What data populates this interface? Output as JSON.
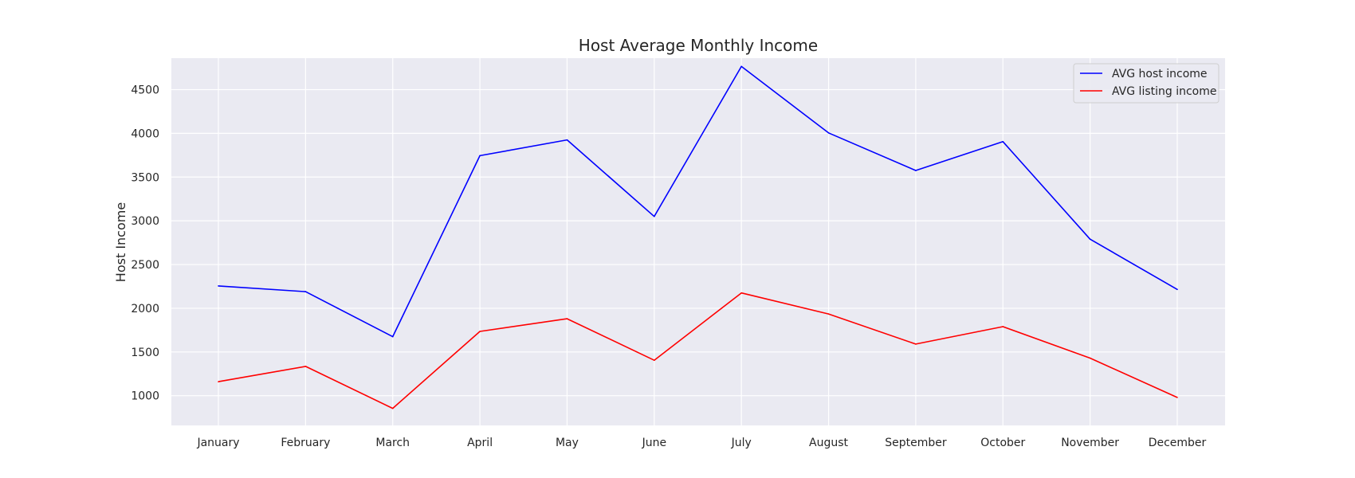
{
  "chart_data": {
    "type": "line",
    "title": "Host Average Monthly Income",
    "xlabel": "",
    "ylabel": "Host Income",
    "categories": [
      "January",
      "February",
      "March",
      "April",
      "May",
      "June",
      "July",
      "August",
      "September",
      "October",
      "November",
      "December"
    ],
    "ylim": [
      660,
      4860
    ],
    "yticks": [
      1000,
      1500,
      2000,
      2500,
      3000,
      3500,
      4000,
      4500
    ],
    "grid": true,
    "legend_position": "top-right",
    "series": [
      {
        "name": "AVG host income",
        "color": "#0000ff",
        "values": [
          2255,
          2190,
          1675,
          3745,
          3925,
          3050,
          4765,
          4005,
          3575,
          3905,
          2790,
          2215
        ]
      },
      {
        "name": "AVG listing income",
        "color": "#ff0000",
        "values": [
          1160,
          1335,
          855,
          1735,
          1880,
          1405,
          2175,
          1935,
          1590,
          1790,
          1430,
          980
        ]
      }
    ]
  }
}
